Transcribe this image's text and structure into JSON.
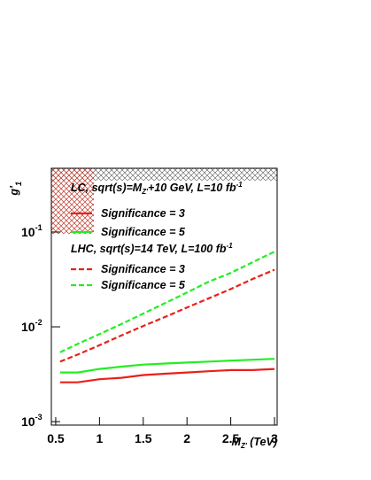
{
  "chart_data": {
    "type": "line",
    "y_label": [
      "g'",
      "1"
    ],
    "x_label": [
      "M",
      "Z'",
      " (TeV)"
    ],
    "legend_titles": [
      [
        "LC, sqrt(s)=M",
        "Z'",
        "+10 GeV, L=10 fb",
        "-1"
      ],
      [
        "LHC, sqrt(s)=14 TeV, L=100 fb",
        "-1"
      ]
    ],
    "x": [
      0.55,
      0.75,
      1,
      1.25,
      1.5,
      1.75,
      2,
      2.25,
      2.5,
      2.75,
      3
    ],
    "series": [
      {
        "name": "Significance = 3",
        "color": "#e8211a",
        "dash": false,
        "values": [
          0.0026,
          0.0026,
          0.0028,
          0.0029,
          0.0031,
          0.0032,
          0.0033,
          0.0034,
          0.0035,
          0.0035,
          0.0036
        ]
      },
      {
        "name": "Significance = 5",
        "color": "#22ee22",
        "dash": false,
        "values": [
          0.0033,
          0.0033,
          0.0036,
          0.0038,
          0.004,
          0.0041,
          0.0042,
          0.0043,
          0.0044,
          0.0045,
          0.0046
        ]
      },
      {
        "name": "Significance = 3",
        "color": "#e8211a",
        "dash": true,
        "values": [
          0.0043,
          0.0051,
          0.0064,
          0.0081,
          0.0102,
          0.0127,
          0.016,
          0.02,
          0.025,
          0.032,
          0.04
        ]
      },
      {
        "name": "Significance = 5",
        "color": "#22ee22",
        "dash": true,
        "values": [
          0.0054,
          0.0066,
          0.0084,
          0.0107,
          0.0138,
          0.0178,
          0.023,
          0.03,
          0.037,
          0.048,
          0.062
        ]
      }
    ],
    "xlim": [
      0.45,
      3.03
    ],
    "xticks": [
      0.5,
      1,
      1.5,
      2,
      2.5,
      3
    ],
    "ylim": [
      0.00092,
      0.47
    ],
    "log_y": true,
    "yticks": [
      {
        "value": 0.001,
        "label": "10",
        "exponent": "-3"
      },
      {
        "value": 0.01,
        "label": "10",
        "exponent": "-2"
      },
      {
        "value": 0.1,
        "label": "10",
        "exponent": "-1"
      }
    ]
  }
}
